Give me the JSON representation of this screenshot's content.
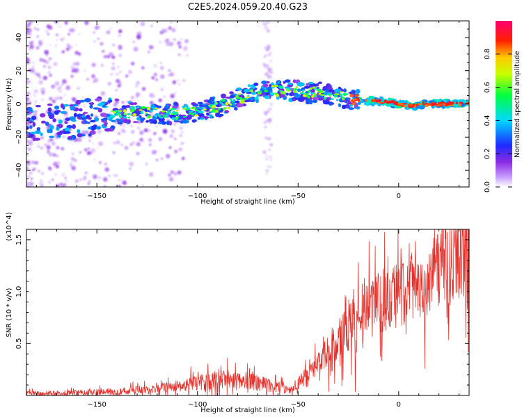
{
  "title": "C2E5.2024.059.20.40.G23",
  "chart_data": [
    {
      "type": "heatmap",
      "xlabel": "Height of straight line (km)",
      "ylabel": "Frequency (Hz)",
      "xlim": [
        -185,
        35
      ],
      "ylim": [
        -50,
        50
      ],
      "x_ticks": [
        -150,
        -100,
        -50,
        0
      ],
      "y_ticks": [
        -40,
        -20,
        0,
        20,
        40
      ],
      "colorbar": {
        "label": "Normalized spectral amplitude",
        "range": [
          0,
          1
        ],
        "ticks": [
          "0.0",
          "0.2",
          "0.4",
          "0.6",
          "0.8"
        ],
        "colormap": "rainbow (white-purple-blue-cyan-green-yellow-red-magenta)"
      },
      "ridge": {
        "x": [
          -180,
          -160,
          -145,
          -130,
          -110,
          -90,
          -75,
          -65,
          -55,
          -45,
          -40,
          -30,
          -25,
          -15,
          -5,
          5,
          15,
          33
        ],
        "frequency_hz": [
          -12,
          -10,
          -6,
          -5,
          -6,
          -2,
          5,
          8,
          8,
          7,
          7,
          5,
          3,
          2,
          1,
          -1,
          0,
          0
        ]
      },
      "grid": false
    },
    {
      "type": "line",
      "xlabel": "Height of straight line (km)",
      "ylabel": "SNR (10 * v/v)",
      "y_multiplier": "(x10^4)",
      "xlim": [
        -185,
        35
      ],
      "ylim": [
        0,
        1.6
      ],
      "x_ticks": [
        -150,
        -100,
        -50,
        0
      ],
      "y_ticks": [
        "0.5",
        "1.0",
        "1.5"
      ],
      "color": "#e8302a",
      "trend": {
        "x": [
          -185,
          -150,
          -130,
          -115,
          -100,
          -90,
          -80,
          -70,
          -60,
          -55,
          -50,
          -40,
          -30,
          -20,
          -10,
          0,
          10,
          20,
          30,
          35
        ],
        "snr_x1e4": [
          0.02,
          0.03,
          0.05,
          0.08,
          0.12,
          0.15,
          0.16,
          0.12,
          0.08,
          0.05,
          0.1,
          0.3,
          0.55,
          0.75,
          0.9,
          1.0,
          1.05,
          1.2,
          1.35,
          1.45
        ]
      },
      "grid": false
    }
  ]
}
